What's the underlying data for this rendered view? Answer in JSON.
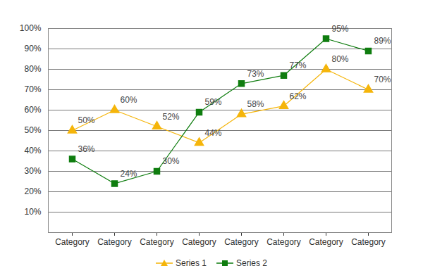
{
  "chart_data": {
    "type": "line",
    "categories": [
      "Category",
      "Category",
      "Category",
      "Category",
      "Category",
      "Category",
      "Category",
      "Category"
    ],
    "series": [
      {
        "name": "Series 1",
        "color": "#f5b50a",
        "marker": "triangle",
        "values": [
          50,
          60,
          52,
          44,
          58,
          62,
          80,
          70
        ],
        "value_labels": [
          "50%",
          "60%",
          "52%",
          "44%",
          "58%",
          "62%",
          "80%",
          "70%"
        ]
      },
      {
        "name": "Series 2",
        "color": "#0f7d0f",
        "marker": "square",
        "values": [
          36,
          24,
          30,
          59,
          73,
          77,
          95,
          89
        ],
        "value_labels": [
          "36%",
          "24%",
          "30%",
          "59%",
          "73%",
          "77%",
          "95%",
          "89%"
        ]
      }
    ],
    "ylim": [
      0,
      100
    ],
    "yticks": [
      {
        "value": 10,
        "label": "10%"
      },
      {
        "value": 20,
        "label": "20%"
      },
      {
        "value": 30,
        "label": "30%"
      },
      {
        "value": 40,
        "label": "40%"
      },
      {
        "value": 50,
        "label": "50%"
      },
      {
        "value": 60,
        "label": "60%"
      },
      {
        "value": 70,
        "label": "70%"
      },
      {
        "value": 80,
        "label": "80%"
      },
      {
        "value": 90,
        "label": "90%"
      },
      {
        "value": 100,
        "label": "100%"
      }
    ],
    "grid": true,
    "data_labels": true,
    "legend": "bottom"
  }
}
